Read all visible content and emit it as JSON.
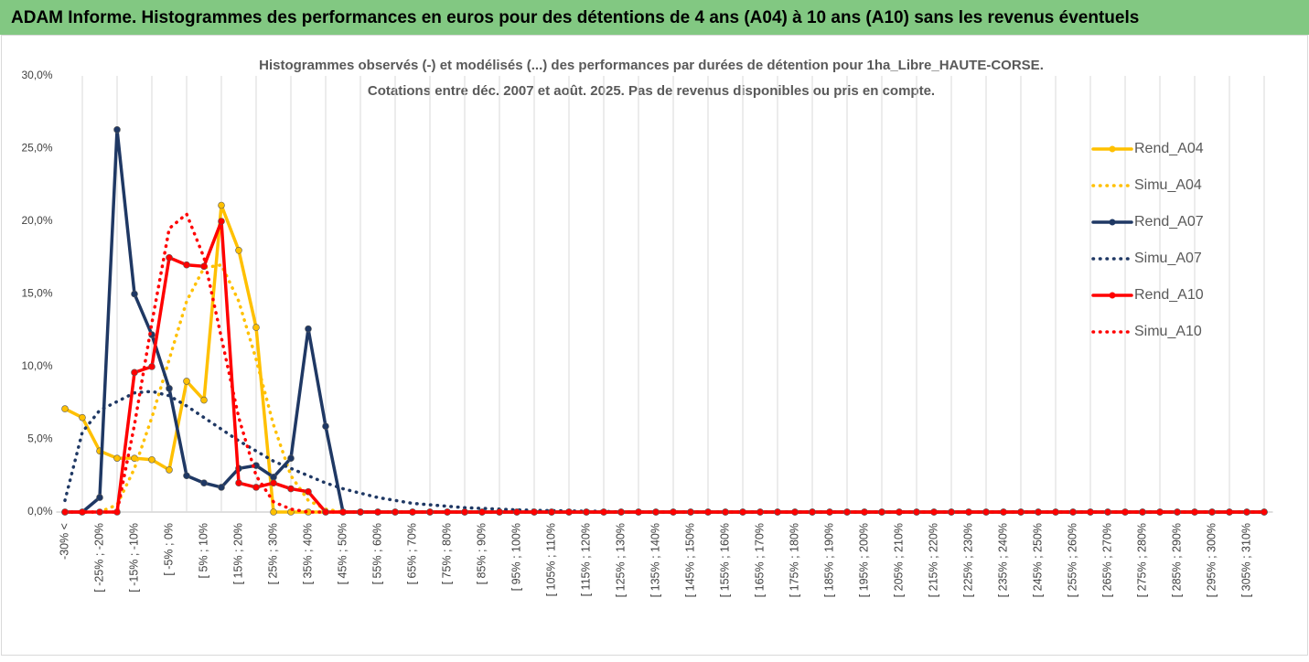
{
  "header": {
    "title": "ADAM Informe. Histogrammes des performances en euros pour des détentions de 4 ans (A04) à 10 ans (A10) sans les revenus éventuels"
  },
  "chart_data": {
    "type": "line",
    "title": [
      "Histogrammes observés (-) et modélisés (...) des performances par durées de détention pour 1ha_Libre_HAUTE-CORSE.",
      "Cotations entre déc. 2007 et août. 2025. Pas de revenus disponibles ou pris en compte."
    ],
    "categories": [
      "-30% <",
      null,
      "[ -25% ; -20%",
      null,
      "[ -15% ; -10%",
      null,
      "[ -5% ; 0%",
      null,
      "[ 5% ; 10%",
      null,
      "[ 15% ; 20%",
      null,
      "[ 25% ; 30%",
      null,
      "[ 35% ; 40%",
      null,
      "[ 45% ; 50%",
      null,
      "[ 55% ; 60%",
      null,
      "[ 65% ; 70%",
      null,
      "[ 75% ; 80%",
      null,
      "[ 85% ; 90%",
      null,
      "[ 95% ; 100%",
      null,
      "[ 105% ; 110%",
      null,
      "[ 115% ; 120%",
      null,
      "[ 125% ; 130%",
      null,
      "[ 135% ; 140%",
      null,
      "[ 145% ; 150%",
      null,
      "[ 155% ; 160%",
      null,
      "[ 165% ; 170%",
      null,
      "[ 175% ; 180%",
      null,
      "[ 185% ; 190%",
      null,
      "[ 195% ; 200%",
      null,
      "[ 205% ; 210%",
      null,
      "[ 215% ; 220%",
      null,
      "[ 225% ; 230%",
      null,
      "[ 235% ; 240%",
      null,
      "[ 245% ; 250%",
      null,
      "[ 255% ; 260%",
      null,
      "[ 265% ; 270%",
      null,
      "[ 275% ; 280%",
      null,
      "[ 285% ; 290%",
      null,
      "[ 295% ; 300%",
      null,
      "[ 305% ; 310%",
      null
    ],
    "ylim": [
      0,
      30
    ],
    "yticks": [
      {
        "value": 0,
        "label": "0,0%"
      },
      {
        "value": 5,
        "label": "5,0%"
      },
      {
        "value": 10,
        "label": "10,0%"
      },
      {
        "value": 15,
        "label": "15,0%"
      },
      {
        "value": 20,
        "label": "20,0%"
      },
      {
        "value": 25,
        "label": "25,0%"
      },
      {
        "value": 30,
        "label": "30,0%"
      }
    ],
    "grid": "vertical",
    "legend": "right",
    "series": [
      {
        "name": "Rend_A04",
        "color": "#ffc000",
        "style": "solid",
        "markers": true,
        "values": [
          7.1,
          6.5,
          4.2,
          3.7,
          3.7,
          3.6,
          2.9,
          9.0,
          7.7,
          21.1,
          18.0,
          12.7,
          0,
          0,
          0,
          0,
          0,
          0,
          0,
          0,
          0,
          0,
          0,
          0,
          0,
          0,
          0,
          0,
          0,
          0,
          0,
          0,
          0,
          0,
          0,
          0,
          0,
          0,
          0,
          0,
          0,
          0,
          0,
          0,
          0,
          0,
          0,
          0,
          0,
          0,
          0,
          0,
          0,
          0,
          0,
          0,
          0,
          0,
          0,
          0,
          0,
          0,
          0,
          0,
          0,
          0,
          0,
          0,
          0,
          0
        ]
      },
      {
        "name": "Simu_A04",
        "color": "#ffc000",
        "style": "dotted",
        "markers": false,
        "values": [
          0,
          0,
          0,
          0.5,
          3,
          6.5,
          10.5,
          14.5,
          16.8,
          17,
          14.5,
          10.5,
          6,
          2.5,
          0.8,
          0.2,
          0,
          0,
          0,
          0,
          0,
          0,
          0,
          0,
          0,
          0,
          0,
          0,
          0,
          0,
          0,
          0,
          0,
          0,
          0,
          0,
          0,
          0,
          0,
          0,
          0,
          0,
          0,
          0,
          0,
          0,
          0,
          0,
          0,
          0,
          0,
          0,
          0,
          0,
          0,
          0,
          0,
          0,
          0,
          0,
          0,
          0,
          0,
          0,
          0,
          0,
          0,
          0,
          0,
          0
        ]
      },
      {
        "name": "Rend_A07",
        "color": "#1f3864",
        "style": "solid",
        "markers": true,
        "values": [
          0,
          0,
          1.0,
          26.3,
          15.0,
          12.2,
          8.5,
          2.5,
          2.0,
          1.7,
          3.0,
          3.2,
          2.4,
          3.7,
          12.6,
          5.9,
          0,
          0,
          0,
          0,
          0,
          0,
          0,
          0,
          0,
          0,
          0,
          0,
          0,
          0,
          0,
          0,
          0,
          0,
          0,
          0,
          0,
          0,
          0,
          0,
          0,
          0,
          0,
          0,
          0,
          0,
          0,
          0,
          0,
          0,
          0,
          0,
          0,
          0,
          0,
          0,
          0,
          0,
          0,
          0,
          0,
          0,
          0,
          0,
          0,
          0,
          0,
          0,
          0,
          0
        ]
      },
      {
        "name": "Simu_A07",
        "color": "#1f3864",
        "style": "dotted",
        "markers": false,
        "values": [
          0.8,
          5.5,
          7.0,
          7.6,
          8.2,
          8.3,
          8.0,
          7.3,
          6.5,
          5.7,
          4.9,
          4.2,
          3.5,
          3.0,
          2.5,
          2.0,
          1.6,
          1.3,
          1.0,
          0.8,
          0.6,
          0.5,
          0.4,
          0.3,
          0.25,
          0.2,
          0.15,
          0.12,
          0.1,
          0.08,
          0.06,
          0.05,
          0,
          0,
          0,
          0,
          0,
          0,
          0,
          0,
          0,
          0,
          0,
          0,
          0,
          0,
          0,
          0,
          0,
          0,
          0,
          0,
          0,
          0,
          0,
          0,
          0,
          0,
          0,
          0,
          0,
          0,
          0,
          0,
          0,
          0,
          0,
          0,
          0,
          0
        ]
      },
      {
        "name": "Rend_A10",
        "color": "#ff0000",
        "style": "solid",
        "markers": true,
        "values": [
          0,
          0,
          0,
          0,
          9.6,
          10.0,
          17.5,
          17.0,
          16.9,
          20.0,
          2.0,
          1.7,
          2.0,
          1.6,
          1.4,
          0,
          0,
          0,
          0,
          0,
          0,
          0,
          0,
          0,
          0,
          0,
          0,
          0,
          0,
          0,
          0,
          0,
          0,
          0,
          0,
          0,
          0,
          0,
          0,
          0,
          0,
          0,
          0,
          0,
          0,
          0,
          0,
          0,
          0,
          0,
          0,
          0,
          0,
          0,
          0,
          0,
          0,
          0,
          0,
          0,
          0,
          0,
          0,
          0,
          0,
          0,
          0,
          0,
          0,
          0
        ]
      },
      {
        "name": "Simu_A10",
        "color": "#ff0000",
        "style": "dotted",
        "markers": false,
        "values": [
          0,
          0,
          0,
          0,
          6,
          13,
          19.5,
          20.5,
          17.5,
          12,
          6.5,
          2.5,
          0.7,
          0.2,
          0,
          0,
          0,
          0,
          0,
          0,
          0,
          0,
          0,
          0,
          0,
          0,
          0,
          0,
          0,
          0,
          0,
          0,
          0,
          0,
          0,
          0,
          0,
          0,
          0,
          0,
          0,
          0,
          0,
          0,
          0,
          0,
          0,
          0,
          0,
          0,
          0,
          0,
          0,
          0,
          0,
          0,
          0,
          0,
          0,
          0,
          0,
          0,
          0,
          0,
          0,
          0,
          0,
          0,
          0,
          0
        ]
      }
    ]
  }
}
